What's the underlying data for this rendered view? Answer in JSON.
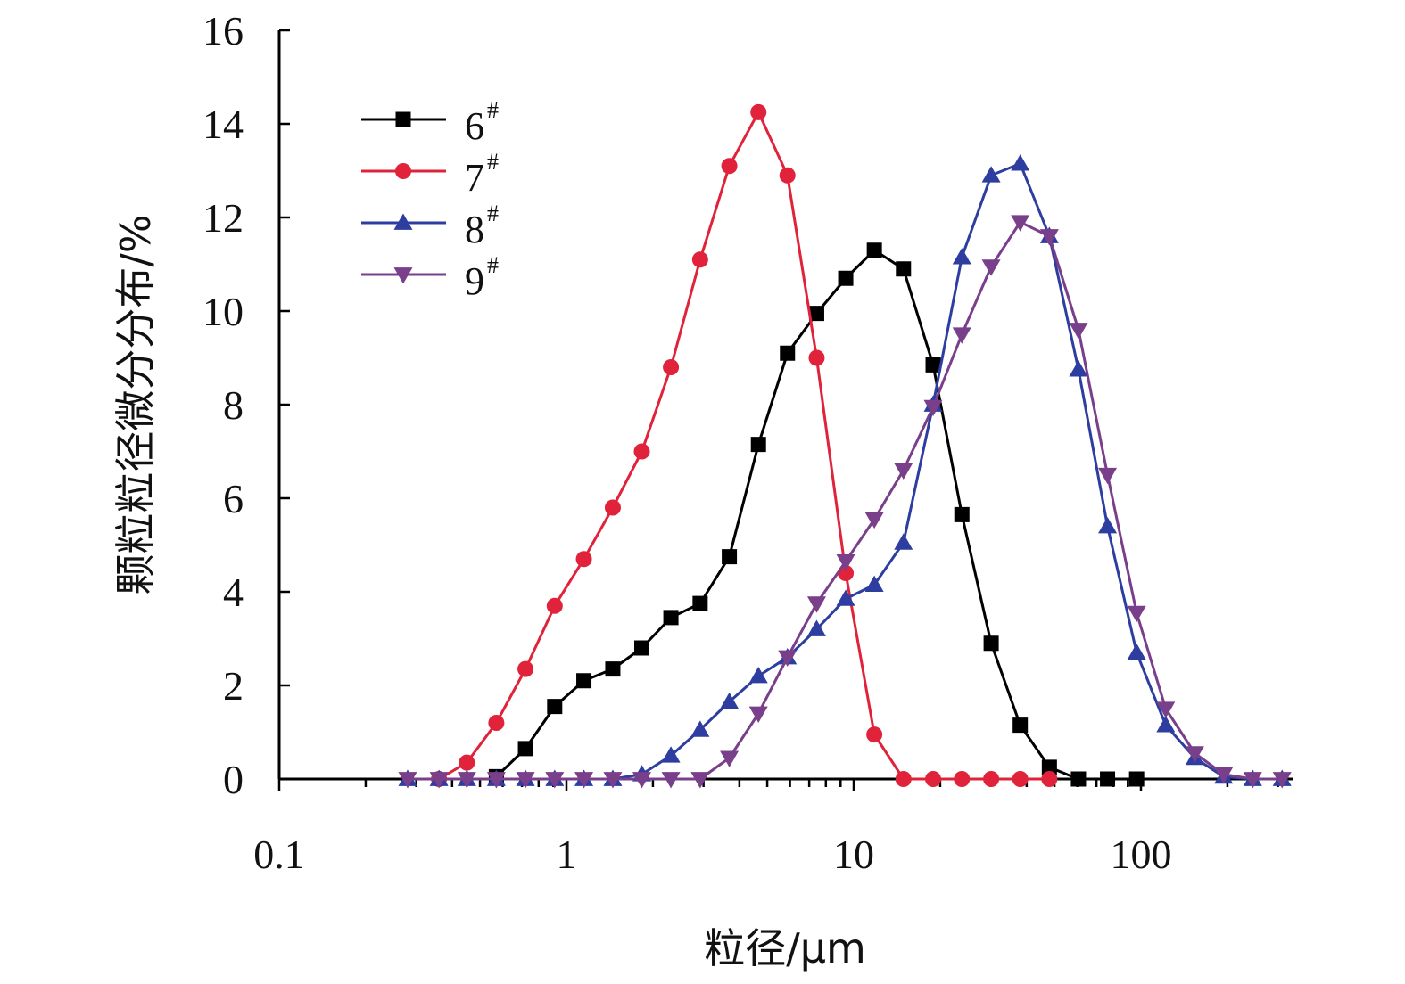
{
  "chart_data": {
    "type": "line",
    "title": "",
    "xlabel": "粒径/μm",
    "ylabel": "颗粒粒径微分分布/%",
    "xscale": "log",
    "xlim": [
      0.1,
      300
    ],
    "ylim": [
      0,
      16
    ],
    "x_ticks": [
      0.1,
      1,
      10,
      100
    ],
    "x_tick_labels": [
      "0.1",
      "1",
      "10",
      "100"
    ],
    "y_ticks": [
      0,
      2,
      4,
      6,
      8,
      10,
      12,
      14,
      16
    ],
    "y_tick_labels": [
      "0",
      "2",
      "4",
      "6",
      "8",
      "10",
      "12",
      "14",
      "16"
    ],
    "grid": false,
    "legend_position": "top-left",
    "series": [
      {
        "name": "6",
        "sup": "#",
        "color": "#000000",
        "marker": "square",
        "x": [
          0.57,
          0.72,
          0.91,
          1.15,
          1.45,
          1.83,
          2.31,
          2.92,
          3.69,
          4.66,
          5.88,
          7.43,
          9.38,
          11.8,
          14.9,
          18.9,
          23.8,
          30.1,
          38.0,
          48.0,
          60.6,
          76.5,
          96.6
        ],
        "y": [
          0.05,
          0.65,
          1.55,
          2.1,
          2.35,
          2.8,
          3.45,
          3.75,
          4.75,
          7.15,
          9.1,
          9.95,
          10.7,
          11.3,
          10.9,
          8.85,
          5.65,
          2.9,
          1.15,
          0.25,
          0.0,
          0.0,
          0.0
        ]
      },
      {
        "name": "7",
        "sup": "#",
        "color": "#e0233a",
        "marker": "circle",
        "x": [
          0.36,
          0.45,
          0.57,
          0.72,
          0.91,
          1.15,
          1.45,
          1.83,
          2.31,
          2.92,
          3.69,
          4.66,
          5.88,
          7.43,
          9.38,
          11.8,
          14.9,
          18.9,
          23.8,
          30.1,
          38.0,
          48.0
        ],
        "y": [
          0.0,
          0.35,
          1.2,
          2.35,
          3.7,
          4.7,
          5.8,
          7.0,
          8.8,
          11.1,
          13.1,
          14.25,
          12.9,
          9.0,
          4.4,
          0.95,
          0.0,
          0.0,
          0.0,
          0.0,
          0.0,
          0.0
        ]
      },
      {
        "name": "8",
        "sup": "#",
        "color": "#2e3ea0",
        "marker": "triangle-up",
        "x": [
          0.28,
          0.36,
          0.45,
          0.57,
          0.72,
          0.91,
          1.15,
          1.45,
          1.83,
          2.31,
          2.92,
          3.69,
          4.66,
          5.88,
          7.43,
          9.38,
          11.8,
          14.9,
          18.9,
          23.8,
          30.1,
          38.0,
          48.0,
          60.6,
          76.5,
          96.6,
          122,
          154,
          194,
          245,
          310
        ],
        "y": [
          0.0,
          0.0,
          0.0,
          0.0,
          0.0,
          0.0,
          0.0,
          0.0,
          0.1,
          0.5,
          1.05,
          1.65,
          2.2,
          2.6,
          3.2,
          3.85,
          4.15,
          5.05,
          8.0,
          11.15,
          12.9,
          13.15,
          11.6,
          8.75,
          5.4,
          2.7,
          1.15,
          0.45,
          0.05,
          0.0,
          0.0
        ]
      },
      {
        "name": "9",
        "sup": "#",
        "color": "#7a3f8a",
        "marker": "triangle-down",
        "x": [
          0.28,
          0.36,
          0.45,
          0.57,
          0.72,
          0.91,
          1.15,
          1.45,
          1.83,
          2.31,
          2.92,
          3.69,
          4.66,
          5.88,
          7.43,
          9.38,
          11.8,
          14.9,
          18.9,
          23.8,
          30.1,
          38.0,
          48.0,
          60.6,
          76.5,
          96.6,
          122,
          154,
          194,
          245,
          310
        ],
        "y": [
          0.0,
          0.0,
          0.0,
          0.0,
          0.0,
          0.0,
          0.0,
          0.0,
          0.0,
          0.0,
          0.0,
          0.45,
          1.4,
          2.6,
          3.75,
          4.65,
          5.55,
          6.6,
          7.95,
          9.5,
          10.95,
          11.9,
          11.6,
          9.6,
          6.5,
          3.55,
          1.5,
          0.55,
          0.1,
          0.0,
          0.0
        ]
      }
    ]
  }
}
